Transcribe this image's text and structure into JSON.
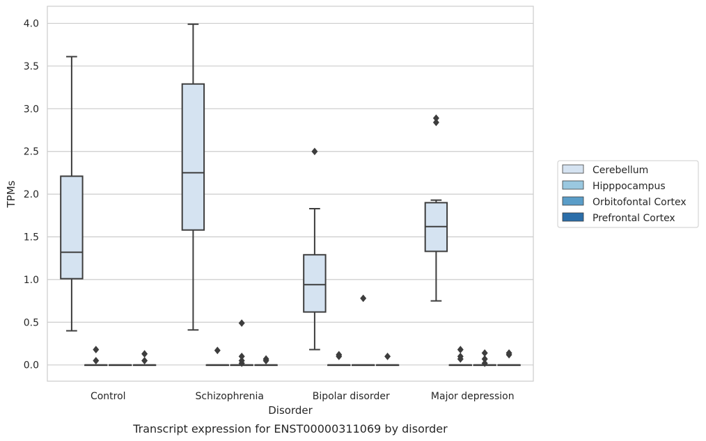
{
  "chart_data": {
    "type": "box",
    "title": "",
    "caption": "Transcript expression for ENST00000311069 by disorder",
    "xlabel": "Disorder",
    "ylabel": "TPMs",
    "ylim": [
      -0.19,
      4.2
    ],
    "yticks": [
      "0.0",
      "0.5",
      "1.0",
      "1.5",
      "2.0",
      "2.5",
      "3.0",
      "3.5",
      "4.0"
    ],
    "grid": "horizontal",
    "legend_position": "right",
    "categories": [
      "Control",
      "Schizophrenia",
      "Bipolar disorder",
      "Major depression"
    ],
    "series": [
      {
        "name": "Cerebellum",
        "color": "#d5e3f1",
        "boxes": [
          {
            "whislo": 0.4,
            "q1": 1.01,
            "med": 1.32,
            "q3": 2.21,
            "whishi": 3.61,
            "fliers": []
          },
          {
            "whislo": 0.41,
            "q1": 1.58,
            "med": 2.25,
            "q3": 3.29,
            "whishi": 3.99,
            "fliers": []
          },
          {
            "whislo": 0.18,
            "q1": 0.62,
            "med": 0.94,
            "q3": 1.29,
            "whishi": 1.83,
            "fliers": [
              2.5
            ]
          },
          {
            "whislo": 0.75,
            "q1": 1.33,
            "med": 1.62,
            "q3": 1.9,
            "whishi": 1.93,
            "fliers": [
              2.84,
              2.89
            ]
          }
        ]
      },
      {
        "name": "Hipppocampus",
        "color": "#9ac8e0",
        "boxes": [
          {
            "whislo": 0.0,
            "q1": 0.0,
            "med": 0.0,
            "q3": 0.0,
            "whishi": 0.0,
            "fliers": [
              0.05,
              0.18
            ]
          },
          {
            "whislo": 0.0,
            "q1": 0.0,
            "med": 0.0,
            "q3": 0.0,
            "whishi": 0.0,
            "fliers": [
              0.17
            ]
          },
          {
            "whislo": 0.0,
            "q1": 0.0,
            "med": 0.0,
            "q3": 0.0,
            "whishi": 0.0,
            "fliers": [
              0.1,
              0.12
            ]
          },
          {
            "whislo": 0.0,
            "q1": 0.0,
            "med": 0.0,
            "q3": 0.0,
            "whishi": 0.0,
            "fliers": [
              0.07,
              0.1,
              0.18
            ]
          }
        ]
      },
      {
        "name": "Orbitofontal Cortex",
        "color": "#5a9dc8",
        "boxes": [
          {
            "whislo": 0.0,
            "q1": 0.0,
            "med": 0.0,
            "q3": 0.0,
            "whishi": 0.0,
            "fliers": []
          },
          {
            "whislo": 0.0,
            "q1": 0.0,
            "med": 0.0,
            "q3": 0.0,
            "whishi": 0.0,
            "fliers": [
              0.02,
              0.05,
              0.1,
              0.49
            ]
          },
          {
            "whislo": 0.0,
            "q1": 0.0,
            "med": 0.0,
            "q3": 0.0,
            "whishi": 0.0,
            "fliers": [
              0.78
            ]
          },
          {
            "whislo": 0.0,
            "q1": 0.0,
            "med": 0.0,
            "q3": 0.0,
            "whishi": 0.0,
            "fliers": [
              0.02,
              0.07,
              0.14
            ]
          }
        ]
      },
      {
        "name": "Prefrontal Cortex",
        "color": "#2b6ea9",
        "boxes": [
          {
            "whislo": 0.0,
            "q1": 0.0,
            "med": 0.0,
            "q3": 0.0,
            "whishi": 0.0,
            "fliers": [
              0.05,
              0.13
            ]
          },
          {
            "whislo": 0.0,
            "q1": 0.0,
            "med": 0.0,
            "q3": 0.0,
            "whishi": 0.0,
            "fliers": [
              0.05,
              0.07
            ]
          },
          {
            "whislo": 0.0,
            "q1": 0.0,
            "med": 0.0,
            "q3": 0.0,
            "whishi": 0.0,
            "fliers": [
              0.1
            ]
          },
          {
            "whislo": 0.0,
            "q1": 0.0,
            "med": 0.0,
            "q3": 0.0,
            "whishi": 0.0,
            "fliers": [
              0.12,
              0.14
            ]
          }
        ]
      }
    ]
  }
}
